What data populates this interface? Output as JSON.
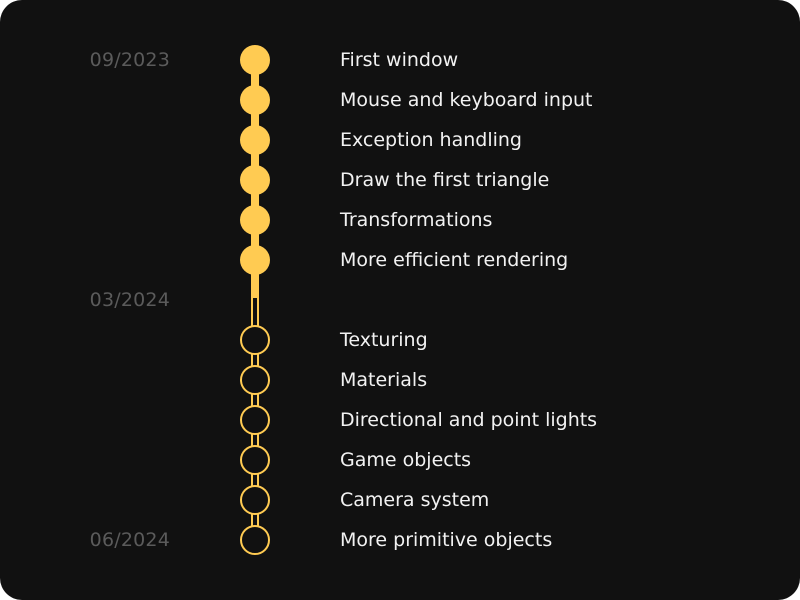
{
  "colors": {
    "accent": "#ffcb52",
    "background": "#111111",
    "text": "#f2f2f2",
    "date": "#5b5b5b"
  },
  "dates": [
    "09/2023",
    "03/2024",
    "06/2024"
  ],
  "milestones": [
    {
      "label": "First window",
      "completed": true
    },
    {
      "label": "Mouse and keyboard input",
      "completed": true
    },
    {
      "label": "Exception handling",
      "completed": true
    },
    {
      "label": "Draw the first triangle",
      "completed": true
    },
    {
      "label": "Transformations",
      "completed": true
    },
    {
      "label": "More efficient rendering",
      "completed": true
    },
    {
      "label": "Texturing",
      "completed": false
    },
    {
      "label": "Materials",
      "completed": false
    },
    {
      "label": "Directional and point lights",
      "completed": false
    },
    {
      "label": "Game objects",
      "completed": false
    },
    {
      "label": "Camera system",
      "completed": false
    },
    {
      "label": "More primitive objects",
      "completed": false
    }
  ]
}
